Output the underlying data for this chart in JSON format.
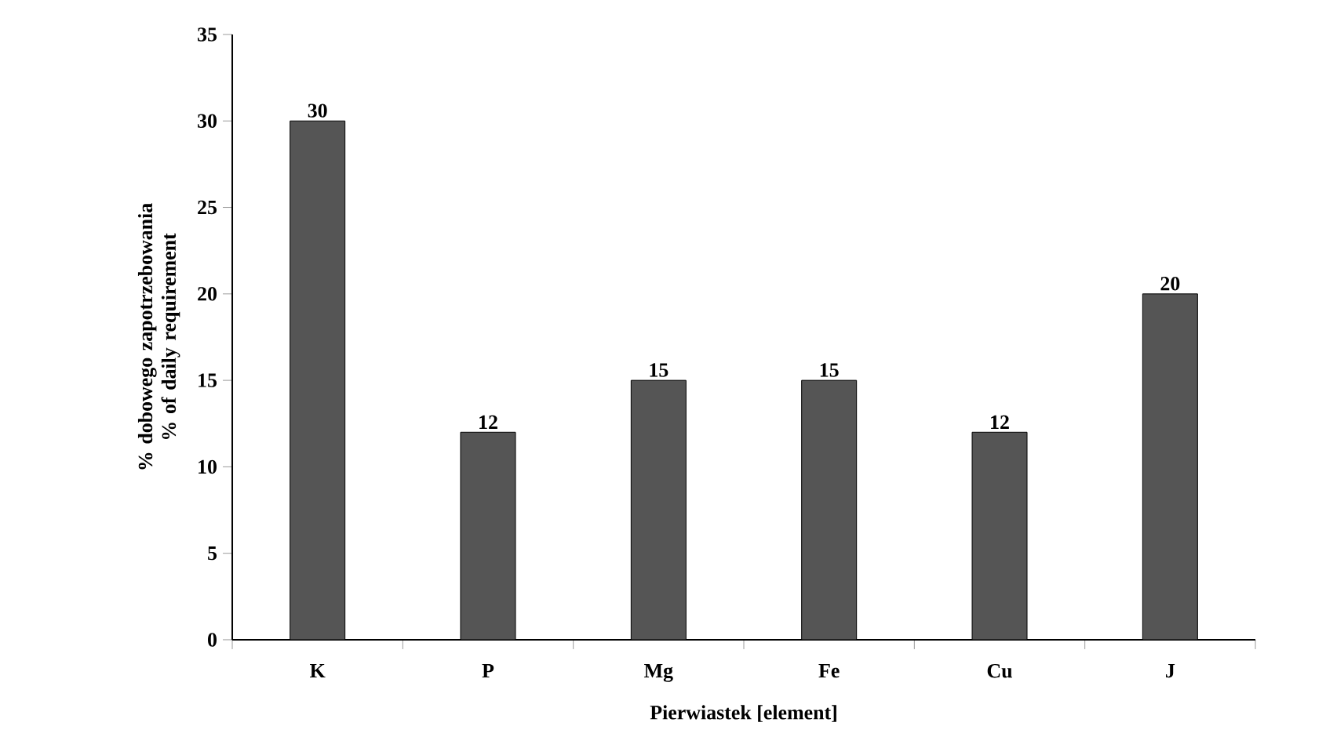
{
  "chart_data": {
    "type": "bar",
    "xlabel": "Pierwiastek [element]",
    "ylabel": "% dobowego zapotrzebowania % of daily requirement",
    "categories": [
      "K",
      "P",
      "Mg",
      "Fe",
      "Cu",
      "J"
    ],
    "values": [
      30,
      12,
      15,
      15,
      12,
      20
    ],
    "color": "#555555",
    "ylim": [
      0,
      35
    ],
    "yticks": [
      0,
      5,
      10,
      15,
      20,
      25,
      30,
      35
    ],
    "data_labels": true,
    "grid": false
  }
}
